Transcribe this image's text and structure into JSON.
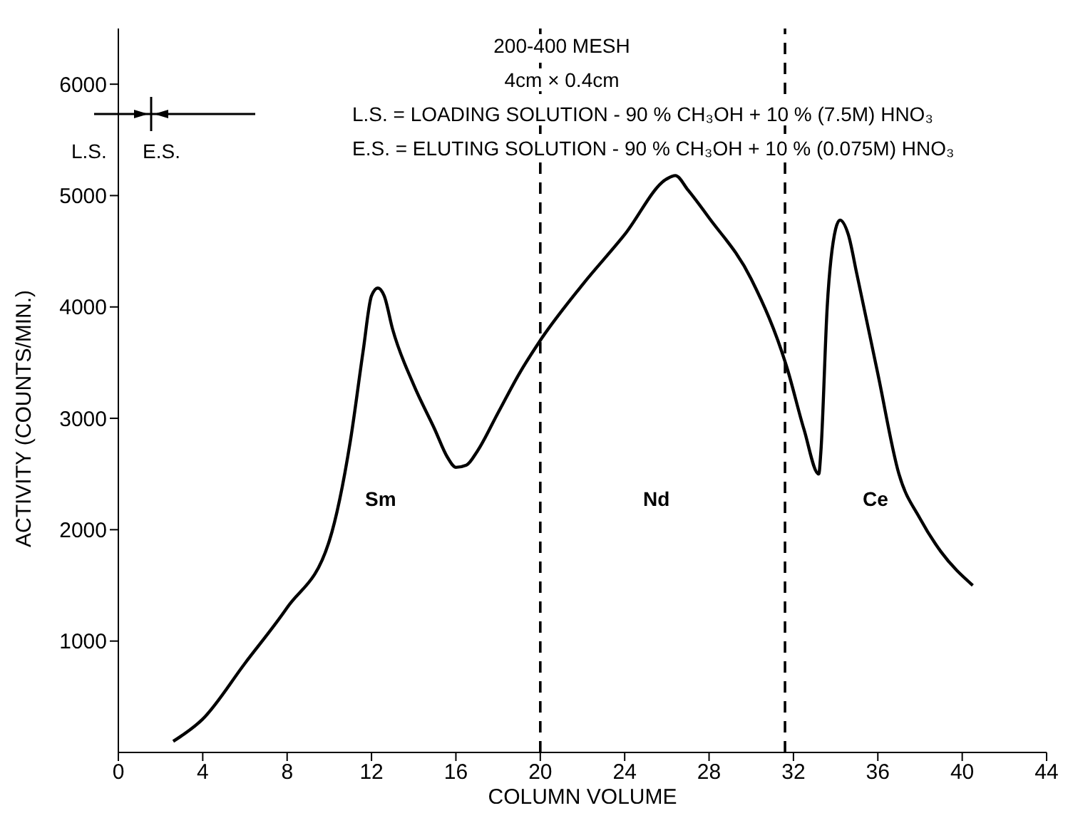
{
  "chart_data": {
    "type": "line",
    "xlabel": "COLUMN VOLUME",
    "ylabel": "ACTIVITY (COUNTS/MIN.)",
    "xlim": [
      0,
      44
    ],
    "xticks": [
      0,
      4,
      8,
      12,
      16,
      20,
      24,
      28,
      32,
      36,
      40,
      44
    ],
    "ylim": [
      0,
      6500
    ],
    "yticks": [
      1000,
      2000,
      3000,
      4000,
      5000,
      6000
    ],
    "marker": "none",
    "line_style": "solid",
    "series": [
      {
        "color": "#000000",
        "x": [
          2.6,
          4,
          6,
          8,
          10,
          11,
          11.6,
          12,
          12.3,
          12.6,
          13,
          14,
          15,
          15.6,
          16,
          16.5,
          17,
          18,
          19,
          20,
          22,
          24,
          26,
          26.4,
          27,
          28,
          30,
          31.7,
          32.5,
          33.2,
          33.3,
          33.6,
          34,
          34.2,
          34.6,
          35,
          36,
          37,
          38,
          39,
          40.5
        ],
        "values": [
          100,
          300,
          800,
          1300,
          1900,
          2800,
          3600,
          4100,
          4170,
          4100,
          3800,
          3300,
          2900,
          2650,
          2560,
          2580,
          2700,
          3050,
          3400,
          3700,
          4200,
          4650,
          5150,
          5180,
          5050,
          4800,
          4250,
          3450,
          2900,
          2500,
          2700,
          4000,
          4700,
          4780,
          4650,
          4300,
          3400,
          2500,
          2100,
          1800,
          1500
        ]
      }
    ],
    "ref_lines": [
      {
        "axis": "x",
        "value": 20,
        "color": "#000000",
        "line_style": "dashed"
      },
      {
        "axis": "x",
        "value": 31.6,
        "color": "#000000",
        "line_style": "dashed"
      }
    ],
    "annotations": [
      "200-400 MESH",
      "4cm × 0.4cm",
      "L.S. = LOADING SOLUTION - 90 % CH₃OH + 10 % (7.5M) HNO₃",
      "E.S. = ELUTING SOLUTION - 90 % CH₃OH + 10 % (0.075M) HNO₃",
      "Sm",
      "Nd",
      "Ce",
      "L.S.",
      "E.S."
    ]
  }
}
